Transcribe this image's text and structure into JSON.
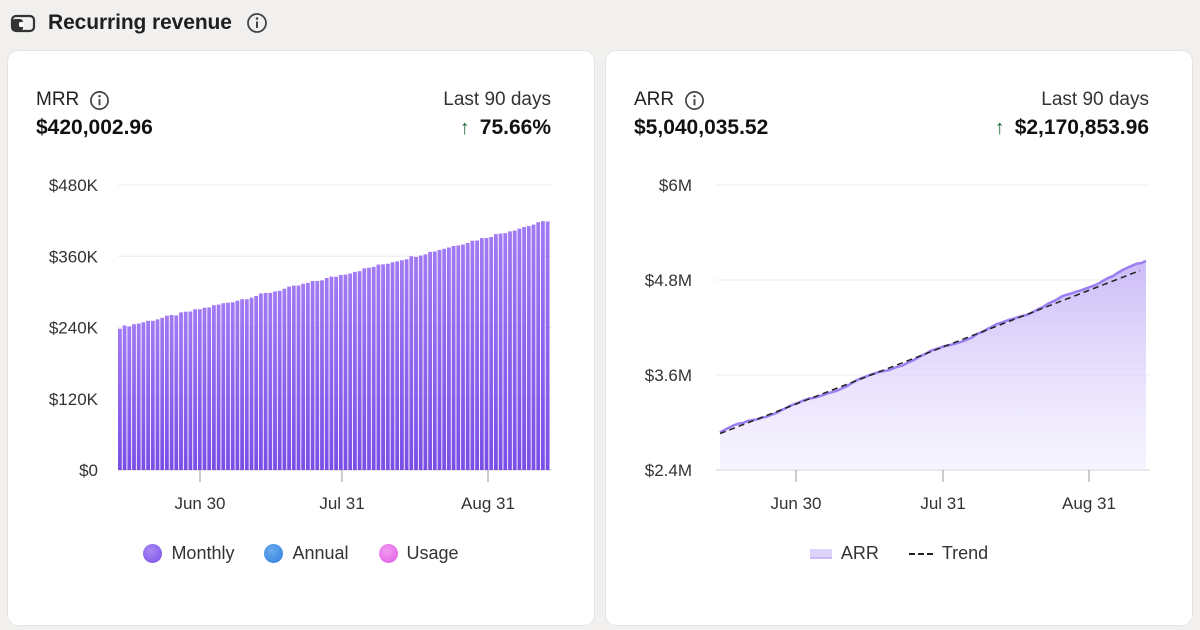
{
  "header": {
    "title": "Recurring revenue",
    "icon": "wallet-icon",
    "info_icon": "info-icon"
  },
  "cards": [
    {
      "metric": "MRR",
      "value": "$420,002.96",
      "period": "Last 90 days",
      "change": "75.66%",
      "change_direction": "up",
      "legend": [
        {
          "label": "Monthly",
          "color": "#8a5cf0"
        },
        {
          "label": "Annual",
          "color": "#3d8de0"
        },
        {
          "label": "Usage",
          "color": "#e46ce8"
        }
      ]
    },
    {
      "metric": "ARR",
      "value": "$5,040,035.52",
      "period": "Last 90 days",
      "change": "$2,170,853.96",
      "change_direction": "up",
      "legend": [
        {
          "label": "ARR",
          "style": "area"
        },
        {
          "label": "Trend",
          "style": "dashed-line"
        }
      ]
    }
  ],
  "chart_data": [
    {
      "type": "bar",
      "series": [
        {
          "name": "Monthly",
          "color": "#8a5cf0"
        }
      ],
      "x_start": "2024-06-08",
      "x_end": "2024-09-08",
      "y_start": 240000,
      "y_end": 420000,
      "ylim": [
        0,
        480000
      ],
      "yticks": [
        0,
        120000,
        240000,
        360000,
        480000
      ],
      "ytick_labels": [
        "$0",
        "$120K",
        "$240K",
        "$360K",
        "$480K"
      ],
      "xtick_labels": [
        "Jun 30",
        "Jul 31",
        "Aug 31"
      ],
      "grid": true
    },
    {
      "type": "area",
      "series": [
        {
          "name": "ARR",
          "color": "#9a7ff0"
        },
        {
          "name": "Trend",
          "style": "dashed",
          "color": "#222222"
        }
      ],
      "y_start": 2880000,
      "y_end": 5040000,
      "ylim": [
        2400000,
        6000000
      ],
      "yticks": [
        2400000,
        3600000,
        4800000,
        6000000
      ],
      "ytick_labels": [
        "$2.4M",
        "$3.6M",
        "$4.8M",
        "$6M"
      ],
      "xtick_labels": [
        "Jun 30",
        "Jul 31",
        "Aug 31"
      ],
      "grid": true
    }
  ]
}
